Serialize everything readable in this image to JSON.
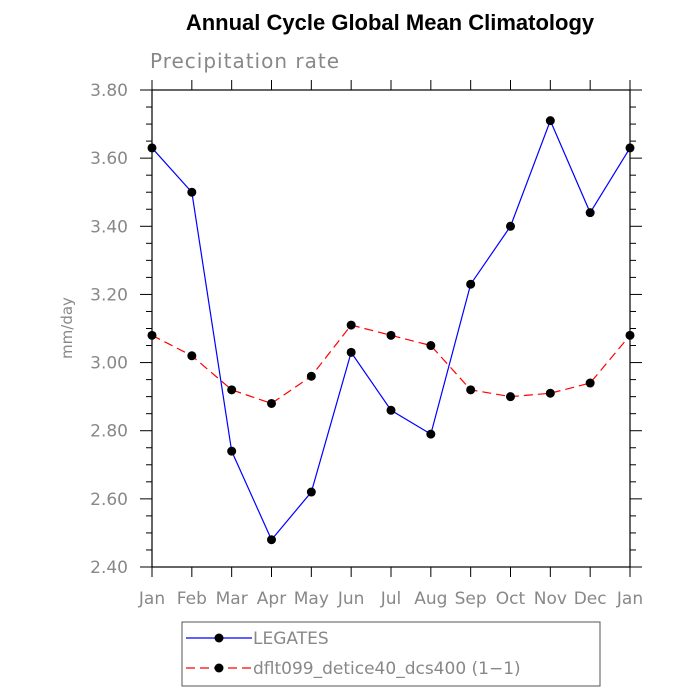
{
  "chart_data": {
    "type": "line",
    "title": "Annual Cycle Global Mean Climatology",
    "subtitle": "Precipitation rate",
    "ylabel": "mm/day",
    "xlabel": "",
    "categories": [
      "Jan",
      "Feb",
      "Mar",
      "Apr",
      "May",
      "Jun",
      "Jul",
      "Aug",
      "Sep",
      "Oct",
      "Nov",
      "Dec",
      "Jan"
    ],
    "ylim": [
      2.4,
      3.8
    ],
    "yticks": [
      "2.40",
      "2.60",
      "2.80",
      "3.00",
      "3.20",
      "3.40",
      "3.60",
      "3.80"
    ],
    "ytick_values": [
      2.4,
      2.6,
      2.8,
      3.0,
      3.2,
      3.4,
      3.6,
      3.8
    ],
    "grid": false,
    "legend_position": "bottom",
    "series": [
      {
        "name": "LEGATES",
        "color": "#0000ff",
        "dash": "solid",
        "values": [
          3.63,
          3.5,
          2.74,
          2.48,
          2.62,
          3.03,
          2.86,
          2.79,
          3.23,
          3.4,
          3.71,
          3.44,
          3.63
        ]
      },
      {
        "name": "dflt099_detice40_dcs400 (1−1)",
        "color": "#ff0000",
        "dash": "dashed",
        "values": [
          3.08,
          3.02,
          2.92,
          2.88,
          2.96,
          3.11,
          3.08,
          3.05,
          2.92,
          2.9,
          2.91,
          2.94,
          3.08
        ]
      }
    ]
  }
}
